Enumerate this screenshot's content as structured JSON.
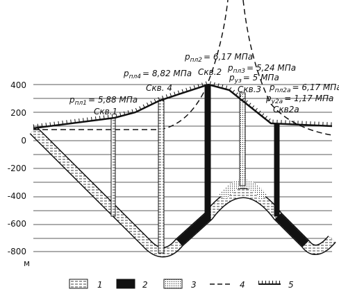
{
  "axis": {
    "ticks": [
      400,
      200,
      0,
      -200,
      -400,
      -600,
      -800
    ],
    "unit": "м"
  },
  "wells": [
    {
      "label": "Скв.1",
      "pressures": [
        {
          "symbol": "p",
          "sub": "пл1",
          "text": "= 5,88 МПа"
        }
      ]
    },
    {
      "label": "Скв. 4",
      "pressures": [
        {
          "symbol": "p",
          "sub": "пл4",
          "text": "= 8,82 МПа"
        }
      ]
    },
    {
      "label": "Скв.2",
      "pressures": [
        {
          "symbol": "p",
          "sub": "пл2",
          "text": "= 6,17 МПа"
        }
      ]
    },
    {
      "label": "Скв.3",
      "pressures": [
        {
          "symbol": "p",
          "sub": "пл3",
          "text": "= 5,24 МПа"
        },
        {
          "symbol": "p",
          "sub": "уз",
          "text": "= 5 МПа"
        }
      ]
    },
    {
      "label": "Скв2а",
      "pressures": [
        {
          "symbol": "p",
          "sub": "пл2а",
          "text": "= 6,17 МПа"
        },
        {
          "symbol": "p",
          "sub": "у2а",
          "text": "= 1,17 МПа"
        }
      ]
    }
  ],
  "legend": [
    "1",
    "2",
    "3",
    "4",
    "5"
  ]
}
